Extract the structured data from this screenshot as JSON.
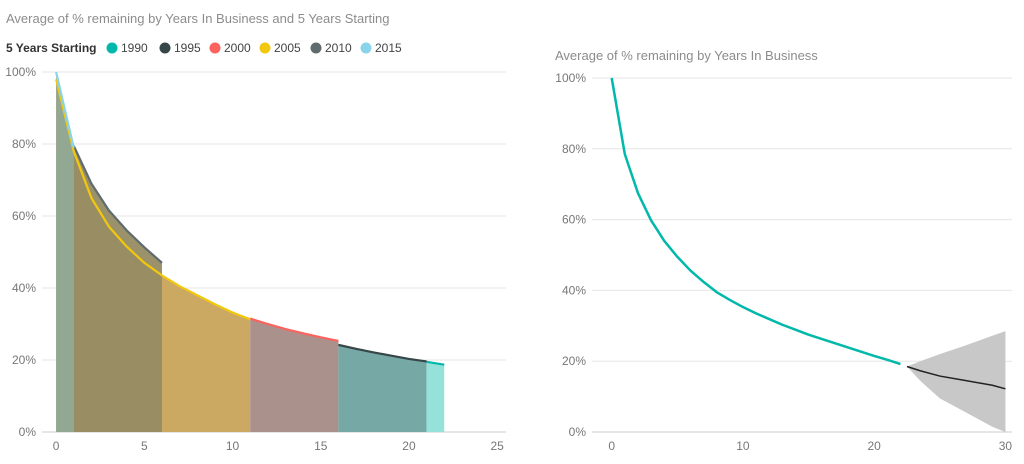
{
  "chart_data": [
    {
      "type": "area",
      "title": "Average of % remaining by Years In Business and 5 Years Starting",
      "legend": {
        "title": "5 Years Starting",
        "placement": "top-left"
      },
      "x_ticks": [
        "0",
        "5",
        "10",
        "15",
        "20",
        "25"
      ],
      "y_ticks": [
        "0%",
        "20%",
        "40%",
        "60%",
        "80%",
        "100%"
      ],
      "xlim": [
        -0.8,
        25.5
      ],
      "ylim": [
        0,
        100
      ],
      "grid": true,
      "series": [
        {
          "name": "1990",
          "color": "#01B8AA",
          "fill": "#90E0D8",
          "x": [
            21,
            22
          ],
          "y": [
            19.5,
            18.7
          ]
        },
        {
          "name": "1995",
          "color": "#374649",
          "fill": "#6FA3A0",
          "x": [
            16,
            17,
            18,
            19,
            20,
            21
          ],
          "y": [
            24.2,
            23.1,
            22.1,
            21.2,
            20.3,
            19.6
          ]
        },
        {
          "name": "2000",
          "color": "#FD625E",
          "fill": "#A58B86",
          "x": [
            11,
            12,
            13,
            14,
            15,
            16
          ],
          "y": [
            31.5,
            30,
            28.6,
            27.4,
            26.3,
            25.3
          ]
        },
        {
          "name": "2005",
          "color": "#F2C80F",
          "fill": "#C9A45A",
          "x": [
            0,
            1,
            2,
            3,
            4,
            5,
            6,
            7,
            8,
            9,
            10,
            11
          ],
          "y": [
            98,
            78,
            65,
            57,
            51.5,
            47,
            43.5,
            40.5,
            38,
            35.5,
            33.2,
            31.3
          ]
        },
        {
          "name": "2010",
          "color": "#5F6B6D",
          "fill": "#968B63",
          "x": [
            1,
            2,
            3,
            4,
            5,
            6
          ],
          "y": [
            79.5,
            69,
            61.5,
            56,
            51.3,
            47
          ]
        },
        {
          "name": "2015",
          "color": "#8AD4EB",
          "fill": "#8FA896",
          "x": [
            0,
            1
          ],
          "y": [
            100,
            79
          ]
        }
      ]
    },
    {
      "type": "line",
      "title": "Average of % remaining by Years In Business",
      "x_ticks": [
        "0",
        "10",
        "20",
        "30"
      ],
      "y_ticks": [
        "0%",
        "20%",
        "40%",
        "60%",
        "80%",
        "100%"
      ],
      "xlim": [
        -1.5,
        30.5
      ],
      "ylim": [
        0,
        100
      ],
      "grid": true,
      "series": [
        {
          "color": "#01B8AA",
          "x": [
            0,
            1,
            2,
            3,
            4,
            5,
            6,
            7,
            8,
            9,
            10,
            11,
            12,
            13,
            14,
            15,
            16,
            17,
            18,
            19,
            20,
            21,
            22
          ],
          "y": [
            100,
            78.5,
            67.5,
            59.8,
            54,
            49.5,
            45.6,
            42.4,
            39.5,
            37.3,
            35.3,
            33.5,
            31.9,
            30.3,
            28.9,
            27.5,
            26.3,
            25.1,
            23.9,
            22.7,
            21.5,
            20.4,
            19.2
          ]
        }
      ],
      "forecast": {
        "color": "#222222",
        "band_color": "#c8c8c8",
        "x": [
          22.5,
          23.5,
          25,
          27,
          29,
          30
        ],
        "y": [
          18.5,
          17.3,
          15.8,
          14.5,
          13.2,
          12.2
        ],
        "lower": [
          18.5,
          14.5,
          9.5,
          5.5,
          1.5,
          0
        ],
        "upper": [
          18.5,
          20,
          22,
          24.5,
          27.2,
          28.5
        ]
      }
    }
  ]
}
